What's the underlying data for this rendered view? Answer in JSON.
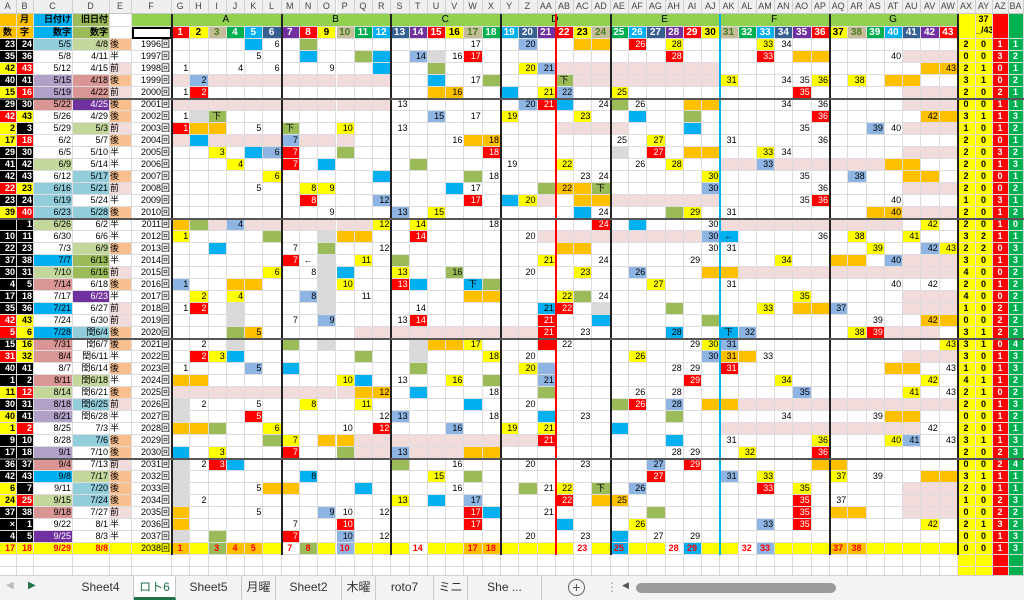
{
  "columns_left": [
    "A",
    "B",
    "C",
    "D",
    "E",
    "F"
  ],
  "columns_num": [
    "G",
    "H",
    "I",
    "J",
    "K",
    "L",
    "M",
    "N",
    "O",
    "P",
    "Q",
    "R",
    "S",
    "T",
    "U",
    "V",
    "W",
    "X",
    "Y",
    "Z",
    "AA",
    "AB",
    "AC",
    "AD",
    "AE",
    "AF",
    "AG",
    "AH",
    "AI",
    "AJ",
    "AK",
    "AL",
    "AM",
    "AN",
    "AO",
    "AP",
    "AQ",
    "AR",
    "AS",
    "AT",
    "AU",
    "AV",
    "AW"
  ],
  "columns_right": [
    "AX",
    "AY",
    "AZ",
    "BA"
  ],
  "header": {
    "b1": "月",
    "a2": "数",
    "b2": "字",
    "c1": "日付け",
    "c2": "数字",
    "d1": "旧日付",
    "d2": "数字",
    "ay1": "37",
    "ay2": "_/43",
    "groups": [
      {
        "label": "A",
        "from": 1,
        "to": 6
      },
      {
        "label": "B",
        "from": 7,
        "to": 12
      },
      {
        "label": "C",
        "from": 13,
        "to": 18
      },
      {
        "label": "D",
        "from": 19,
        "to": 24
      },
      {
        "label": "E",
        "from": 25,
        "to": 30
      },
      {
        "label": "F",
        "from": 31,
        "to": 36
      },
      {
        "label": "G",
        "from": 37,
        "to": 43
      }
    ],
    "numbers": [
      1,
      2,
      3,
      4,
      5,
      6,
      7,
      8,
      9,
      10,
      11,
      12,
      13,
      14,
      15,
      16,
      17,
      18,
      19,
      20,
      21,
      22,
      23,
      24,
      25,
      26,
      27,
      28,
      29,
      30,
      31,
      32,
      33,
      34,
      35,
      36,
      37,
      38,
      39,
      40,
      41,
      42,
      43
    ],
    "number_palette": [
      "#ff0000",
      "#ffff00",
      "#c4bd97",
      "#00b050",
      "#00b0f0",
      "#366092",
      "#7030a0"
    ]
  },
  "colors": {
    "w": "#ffffff",
    "y": "#ffff00",
    "r": "#ff0000",
    "k": "#000000",
    "b": "#00b0f0",
    "l": "#8db4e2",
    "g": "#9bbb59",
    "o": "#ffc000",
    "p": "#f2dcdb",
    "x": "#d9d9d9",
    "c": "#92cddc",
    "e": "#c4d79b",
    "v": "#b1a0c7",
    "m": "#da9694",
    "P": "#7030a0",
    "G": "#9bbb59",
    "B": "#00b0f0",
    "group_header": "#92d050",
    "after": "#fabf8f",
    "before": "#f2dcdb"
  },
  "rows": [
    {
      "a": "23",
      "b": "24",
      "c": "5/5",
      "d": "4/8",
      "e": "後",
      "f": "1996回",
      "ab": "kk",
      "cd": "ce",
      "s": [
        "2",
        "0",
        "1",
        "1"
      ],
      "cells": "5:b,6=6,8:g,17=17,20=20:l,23-24:o,26=26:r,28=28:y,33=33:y,34=34"
    },
    {
      "a": "35",
      "b": "36",
      "c": "5/8",
      "d": "4/11",
      "e": "半",
      "f": "1997回",
      "ab": "kk",
      "cd": "ww",
      "s": [
        "0",
        "0",
        "3",
        "2"
      ],
      "cells": "5=5,8:b,11:g,12:b,14=14:l,15:x,16=16,17=17:r,28=28:r,33=33:r,35-36:o,40=40,41-43:p"
    },
    {
      "a": "42",
      "b": "43",
      "c": "5/12",
      "d": "4/15",
      "e": "前",
      "f": "1998回",
      "ab": "yr",
      "cd": "ww",
      "s": [
        "2",
        "1",
        "0",
        "1"
      ],
      "cells": "1=1,4=4,6=6,9=9,12:b,15:g,20=20:y,21=21:l,22-30:p,42:o,43=43:o"
    },
    {
      "a": "40",
      "b": "41",
      "c": "5/15",
      "d": "4/18",
      "e": "後",
      "f": "1999回",
      "ab": "kk",
      "cd": "vm",
      "s": [
        "3",
        "1",
        "0",
        "2"
      ],
      "cells": "1-12:p,2=2:l,15:b,17=17,18:g,22=下:g,23-30:p,31=31:y,34=34,35=35,36=36:y,38=38:y,40-41:o"
    },
    {
      "a": "15",
      "b": "16",
      "c": "5/19",
      "d": "4/22",
      "e": "前",
      "f": "2000回",
      "ab": "yr",
      "cd": "vm",
      "s": [
        "2",
        "0",
        "2",
        "1"
      ],
      "cells": "1=1,2=2:r,15:o,16=16:o,19:b,21=21:y,22=22:l,25=25:y,35=35:r,41-43:p"
    },
    {
      "a": "29",
      "b": "30",
      "c": "5/22",
      "d": "4/25",
      "e": "後",
      "f": "2001回",
      "ab": "kk",
      "cd": "mP",
      "s": [
        "0",
        "0",
        "1",
        "1"
      ],
      "cells": "1-12:p,13=13,20=20:l,21=21:r,22:b,24=24,25:g,26=26,29-30:o,34=34,36=36,41-43:p"
    },
    {
      "a": "42",
      "b": "43",
      "c": "5/26",
      "d": "4/29",
      "e": "後",
      "f": "2002回",
      "ab": "ry",
      "cd": "ww",
      "s": [
        "3",
        "1",
        "1",
        "3"
      ],
      "cells": "1=1,2:x,3=下:g,15=15:l,17=17,19=19:y,23=23:y,26:b,29:g,36=36:r,42=42:o,43:o"
    },
    {
      "a": "2",
      "b": "3",
      "c": "5/29",
      "d": "5/3",
      "e": "前",
      "f": "2003回",
      "ab": "yk",
      "cd": "we",
      "s": [
        "1",
        "0",
        "1",
        "2"
      ],
      "cells": "1=1:r,2-3:o,5=5,7=下:g,10=10:y,13=13,22-25:p,29:b,35=35,39=39:l,40=40,41-43:p"
    },
    {
      "a": "17",
      "b": "18",
      "c": "6/2",
      "d": "5/7",
      "e": "後",
      "f": "2004回",
      "ab": "yr",
      "cd": "ww",
      "s": [
        "2",
        "0",
        "0",
        "1"
      ],
      "cells": "1:p,2:b,3-6:p,7=7:l,8-10:p,16=16,17:o,18=18:o,25=25,27=27:y,31=31,36=36"
    },
    {
      "a": "29",
      "b": "30",
      "c": "6/5",
      "d": "5/10",
      "e": "半",
      "f": "2005回",
      "ab": "kk",
      "cd": "ww",
      "s": [
        "2",
        "0",
        "3",
        "2"
      ],
      "cells": "3=3:y,5:b,6=6:l,7=7:r,10:g,18=18:r,25:x,27=27:r,29-30:o,33=33:y,34=34,41-43:p"
    },
    {
      "a": "41",
      "b": "42",
      "c": "6/9",
      "d": "5/14",
      "e": "半",
      "f": "2006回",
      "ab": "kk",
      "cd": "ew",
      "s": [
        "2",
        "0",
        "1",
        "3"
      ],
      "cells": "4=4:y,7=7:r,9:b,14:g,19=19,22=22:y,26=26,28=28:y,31-32:p,33=33:l,34-39:p,40-41:o"
    },
    {
      "a": "42",
      "b": "43",
      "c": "6/12",
      "d": "5/17",
      "e": "後",
      "f": "2007回",
      "ab": "kk",
      "cd": "wc",
      "s": [
        "2",
        "0",
        "0",
        "1"
      ],
      "cells": "6=6:y,12:b,17:g,18=18,23=23,24=24,30=30:y,35=35,38=38:l,41-42:o"
    },
    {
      "a": "22",
      "b": "23",
      "c": "6/16",
      "d": "5/21",
      "e": "前",
      "f": "2008回",
      "ab": "ry",
      "cd": "cc",
      "s": [
        "2",
        "0",
        "0",
        "2"
      ],
      "cells": "5=5,8=8:y,9=9:y,16:b,17=17,21:g,22=22:o,23:o,24=下:g,30=30:l,36=36,41-43:p"
    },
    {
      "a": "23",
      "b": "24",
      "c": "6/19",
      "d": "5/24",
      "e": "半",
      "f": "2009回",
      "ab": "kk",
      "cd": "cw",
      "s": [
        "1",
        "0",
        "3",
        "1"
      ],
      "cells": "8=8:r,12=12:l,17=17:r,19:b,20=20:y,21:p,23-24:o,25-30:p,35=35,36=36:r,40=40"
    },
    {
      "a": "39",
      "b": "40",
      "c": "6/23",
      "d": "5/28",
      "e": "後",
      "f": "2010回",
      "ab": "yr",
      "cd": "cc",
      "s": [
        "2",
        "0",
        "1",
        "2"
      ],
      "cells": "9=9,13=13:l,15=15:y,23:b,24=24,28:g,29=29:y,31=31,39:o,40=40:o,41-43:p"
    },
    {
      "a": "",
      "b": "1",
      "c": "6/26",
      "d": "6/2",
      "e": "半",
      "f": "2011回",
      "ab": "kk",
      "cd": "ew",
      "s": [
        "2",
        "0",
        "1",
        "0"
      ],
      "cells": "1:o,2:g,3:p,4=4:l,5-11:p,12=12:y,14=14:y,18=18,24=24:r,26:b,30=30,31-40:p,42=42:y"
    },
    {
      "a": "10",
      "b": "11",
      "c": "6/30",
      "d": "6/6",
      "e": "半",
      "f": "2012回",
      "ab": "kk",
      "cd": "ww",
      "s": [
        "3",
        "2",
        "1",
        "1"
      ],
      "cells": "1=1:y,6:g,9:x,10-11:o,14=14:r,20=20,21-29:p,30=30:l,31=←:b,36=36,38=38:y,41=41:y"
    },
    {
      "a": "22",
      "b": "23",
      "c": "7/3",
      "d": "6/9",
      "e": "後",
      "f": "2013回",
      "ab": "kk",
      "cd": "we",
      "s": [
        "2",
        "2",
        "0",
        "3"
      ],
      "cells": "3:b,7=7,9:g,12=12,22-23:o,30=30,31=31,39=39:y,42=42:l,43=43:y"
    },
    {
      "a": "37",
      "b": "38",
      "c": "7/7",
      "d": "6/13",
      "e": "半",
      "f": "2014回",
      "ab": "kk",
      "cd": "BG",
      "s": [
        "3",
        "0",
        "1",
        "3"
      ],
      "cells": "7=7:r,8=←,9:x,11=11:y,13:g,21=21:y,24=24,29=29,34=34:y,37-38:o,40=40:l,41-43:p"
    },
    {
      "a": "30",
      "b": "31",
      "c": "7/10",
      "d": "6/16",
      "e": "前",
      "f": "2015回",
      "ab": "kk",
      "cd": "eG",
      "s": [
        "4",
        "0",
        "0",
        "2"
      ],
      "cells": "6=6:y,8=8,9:x,10:b,13=13:y,16=16:g,20=20,23=23:y,26=26:l,30-31:o,32-43:p"
    },
    {
      "a": "4",
      "b": "5",
      "c": "7/14",
      "d": "6/18",
      "e": "後",
      "f": "2016回",
      "ab": "kk",
      "cd": "mw",
      "s": [
        "2",
        "0",
        "1",
        "2"
      ],
      "cells": "1=1:l,4-5:o,9:x,10=10:y,13=13:r,14:b,17=下:b,18:g,27=27:y,31=31,40=40,42=42"
    },
    {
      "a": "17",
      "b": "18",
      "c": "7/17",
      "d": "6/23",
      "e": "半",
      "f": "2017回",
      "ab": "kk",
      "cd": "wP",
      "s": [
        "4",
        "0",
        "0",
        "2"
      ],
      "cells": "2=2:y,4=4:y,8=8:l,9:x,11=11,17-18:o,22=22:y,23:g,24=24,35=35:y,41-43:p"
    },
    {
      "a": "35",
      "b": "36",
      "c": "7/21",
      "d": "6/27",
      "e": "前",
      "f": "2018回",
      "ab": "kk",
      "cd": "Bw",
      "s": [
        "1",
        "0",
        "2",
        "1"
      ],
      "cells": "1=1,2=2:r,4:x,9:x,14=14,21=21:b,22=22:r,24:x,28:g,33=33:y,35-36:o,37=37:l,41-43:p"
    },
    {
      "a": "42",
      "b": "43",
      "c": "7/24",
      "d": "6/30",
      "e": "前",
      "f": "2019回",
      "ab": "ry",
      "cd": "ww",
      "s": [
        "0",
        "0",
        "2",
        "2"
      ],
      "cells": "4:x,7=7,9=9:l,13=13,14=14:r,21=21:r,24:b,30:g,39=39,42=42:o,43:o"
    },
    {
      "a": "5",
      "b": "6",
      "c": "7/28",
      "d": "閏6/4",
      "e": "後",
      "f": "2020回",
      "ab": "ry",
      "cd": "Bc",
      "s": [
        "3",
        "1",
        "2",
        "2"
      ],
      "cells": "4:g,5=5:o,11-20:p,21=21:r,23=23,28=28:b,31=下:b,32=32:l,38=38:y,39=39:r,40-42:p"
    },
    {
      "a": "15",
      "b": "16",
      "c": "7/31",
      "d": "閏6/7",
      "e": "後",
      "f": "2021回",
      "ab": "ky",
      "cd": "mw",
      "s": [
        "3",
        "1",
        "0",
        "4"
      ],
      "cells": "2=2,4:x,7:g,9:x,14:x,15-16:o,17=17:y,21:r,22=22,29=29,30=30:y,31=31:l,43=43:y"
    },
    {
      "a": "31",
      "b": "32",
      "c": "8/4",
      "d": "閏6/11",
      "e": "半",
      "f": "2022回",
      "ab": "ry",
      "cd": "mw",
      "s": [
        "3",
        "0",
        "1",
        "3"
      ],
      "cells": "2=2:r,3=3:y,4:b,11:g,14:x,18=18:y,20=20,26=26:y,30=30:l,31=31:o,32:o,33=33,41-43:p"
    },
    {
      "a": "40",
      "b": "41",
      "c": "8/7",
      "d": "閏6/14",
      "e": "後",
      "f": "2023回",
      "ab": "kk",
      "cd": "ww",
      "s": [
        "1",
        "0",
        "1",
        "3"
      ],
      "cells": "1=1,5=5:l,7:b,14:g,20=20:y,21:l,28=28,29=29,31=31:r,40-41:o,43=43"
    },
    {
      "a": "1",
      "b": "2",
      "c": "8/11",
      "d": "閏6/18",
      "e": "半",
      "f": "2024回",
      "ab": "kk",
      "cd": "me",
      "s": [
        "4",
        "1",
        "1",
        "2"
      ],
      "cells": "1-2:o,10=10:y,11:b,13=13,16=16:y,18:g,21=21:l,29=29:r,34=34:y,42=42:y"
    },
    {
      "a": "11",
      "b": "12",
      "c": "8/14",
      "d": "閏6/21",
      "e": "後",
      "f": "2025回",
      "ab": "yr",
      "cd": "ew",
      "s": [
        "2",
        "1",
        "0",
        "2"
      ],
      "cells": "1-10:p,11:o,12=12:o,14:b,18=18,21:g,26=26,28=28,35=35:l,41=41:y,43=43"
    },
    {
      "a": "30",
      "b": "31",
      "c": "8/18",
      "d": "閏6/25",
      "e": "前",
      "f": "2026回",
      "ab": "kk",
      "cd": "vc",
      "s": [
        "2",
        "0",
        "1",
        "3"
      ],
      "cells": "1:x,2=2,5=5,8=8:y,11=11:y,17:b,20=20,25:g,26=26:r,28=28:l,30-31:o,32-43:p"
    },
    {
      "a": "40",
      "b": "41",
      "c": "8/21",
      "d": "閏6/28",
      "e": "半",
      "f": "2027回",
      "ab": "yk",
      "cd": "vw",
      "s": [
        "0",
        "0",
        "1",
        "2"
      ],
      "cells": "1:x,5=5:r,12=12,13=13:l,18=18,21:b,23=23,28:g,34=34,39=39,40-41:o"
    },
    {
      "a": "1",
      "b": "2",
      "c": "8/25",
      "d": "7/3",
      "e": "半",
      "f": "2028回",
      "ab": "yr",
      "cd": "ww",
      "s": [
        "2",
        "0",
        "1",
        "1"
      ],
      "cells": "1-2:o,3:g,6=6:y,10=10,12=12:r,16=16:l,19=19:y,21=21:y,25:b,31-41:p,42=42"
    },
    {
      "a": "9",
      "b": "10",
      "c": "8/28",
      "d": "7/6",
      "e": "後",
      "f": "2029回",
      "ab": "kk",
      "cd": "wc",
      "s": [
        "3",
        "1",
        "1",
        "3"
      ],
      "cells": "6:g,7=7:y,9-10:o,11-20:p,21=21:r,28:b,31=31,36=36:y,40=40:y,41=41:l,43=43"
    },
    {
      "a": "17",
      "b": "18",
      "c": "9/1",
      "d": "7/10",
      "e": "後",
      "f": "2030回",
      "ab": "kk",
      "cd": "vw",
      "s": [
        "2",
        "0",
        "2",
        "3"
      ],
      "cells": "1:b,3=3:y,7=7:r,10:g,11-12:p,13=13:l,14-16:p,17-18:o,28=28,29=29,32=32:y,36=36:r"
    },
    {
      "a": "36",
      "b": "37",
      "c": "9/4",
      "d": "7/13",
      "e": "前",
      "f": "2031回",
      "ab": "kk",
      "cd": "mw",
      "s": [
        "0",
        "0",
        "2",
        "4"
      ],
      "cells": "1:x,2=2,3=3:r,4:b,13:g,16=16,20=20,23=23,27=27:l,29=29:r,36-37:o"
    },
    {
      "a": "42",
      "b": "43",
      "c": "9/8",
      "d": "7/17",
      "e": "後",
      "f": "2032回",
      "ab": "kk",
      "cd": "Be",
      "s": [
        "3",
        "1",
        "1",
        "1"
      ],
      "cells": "1:x,8=8:b,15=15:y,17:g,27=27:r,31=31:l,33=33:y,37=37:y,39=39,42-43:o"
    },
    {
      "a": "6",
      "b": "7",
      "c": "9/11",
      "d": "7/20",
      "e": "後",
      "f": "2033回",
      "ab": "yk",
      "cd": "wc",
      "s": [
        "2",
        "0",
        "1",
        "1"
      ],
      "cells": "1:x,5=5,6-7:o,11:b,16=16,20:g,21=21,22=22:y,24=下:g,26=26:l,33=33:r,35=35:y,41-43:p"
    },
    {
      "a": "24",
      "b": "25",
      "c": "9/15",
      "d": "7/24",
      "e": "後",
      "f": "2034回",
      "ab": "yr",
      "cd": "ec",
      "s": [
        "1",
        "0",
        "2",
        "3"
      ],
      "cells": "1:x,2=2,13=13:y,15:b,17=17:l,22=22:r,24:o,25=25:o,35=35:r,37=37,41-43:p"
    },
    {
      "a": "37",
      "b": "38",
      "c": "9/18",
      "d": "7/27",
      "e": "前",
      "f": "2035回",
      "ab": "kk",
      "cd": "mw",
      "s": [
        "0",
        "0",
        "2",
        "2"
      ],
      "cells": "1:o,5=5,9=9:l,10=10,12=12,17=17:r,18:b,21=21,27:g,35=35:r,37-38:o,41-43:p"
    },
    {
      "a": "×",
      "b": "1",
      "c": "9/22",
      "d": "8/1",
      "e": "半",
      "f": "2036回",
      "ab": "kk",
      "cd": "ww",
      "s": [
        "2",
        "1",
        "3",
        "2"
      ],
      "cells": "1:o,7=7,10=10:r,17=17:r,22:b,26=26:y,33=33:l,35=35:r,42=42:y"
    },
    {
      "a": "4",
      "b": "5",
      "c": "9/25",
      "d": "8/3",
      "e": "半",
      "f": "2037回",
      "ab": "kk",
      "cd": "Pw",
      "s": [
        "0",
        "0",
        "1",
        "3"
      ],
      "cells": "1:x,3:g,7=7:r,10=10:l,12=12,20=20,23=23,25:b,27=27,29=29"
    },
    {
      "a": "17",
      "b": "18",
      "c": "9/29",
      "d": "8/8",
      "e": "",
      "f": "2038回",
      "ab": "yy",
      "cd": "yy",
      "s": [
        "0",
        "0",
        "1",
        "3"
      ],
      "total": true,
      "cells": "1-43:y,1=1:o,3=3:g,4=4:o,5=5:o,7=7,8=8:g,10=10:l,14=14,17=17:o,18=18:o,23=23,25=25:b,28=28,29=29:b,32=32,33=33:l,37=37:o,38=38:o"
    }
  ],
  "tabs": {
    "items": [
      {
        "label": "Sheet4",
        "active": false
      },
      {
        "label": "ロト6",
        "active": true
      },
      {
        "label": "Sheet5",
        "active": false
      },
      {
        "label": "月曜",
        "active": false
      },
      {
        "label": "Sheet2",
        "active": false
      },
      {
        "label": "木曜",
        "active": false
      },
      {
        "label": "roto7",
        "active": false
      },
      {
        "label": "ミニ",
        "active": false
      },
      {
        "label": "She ...",
        "active": false
      }
    ],
    "add_icon": "plus-circle-icon"
  }
}
